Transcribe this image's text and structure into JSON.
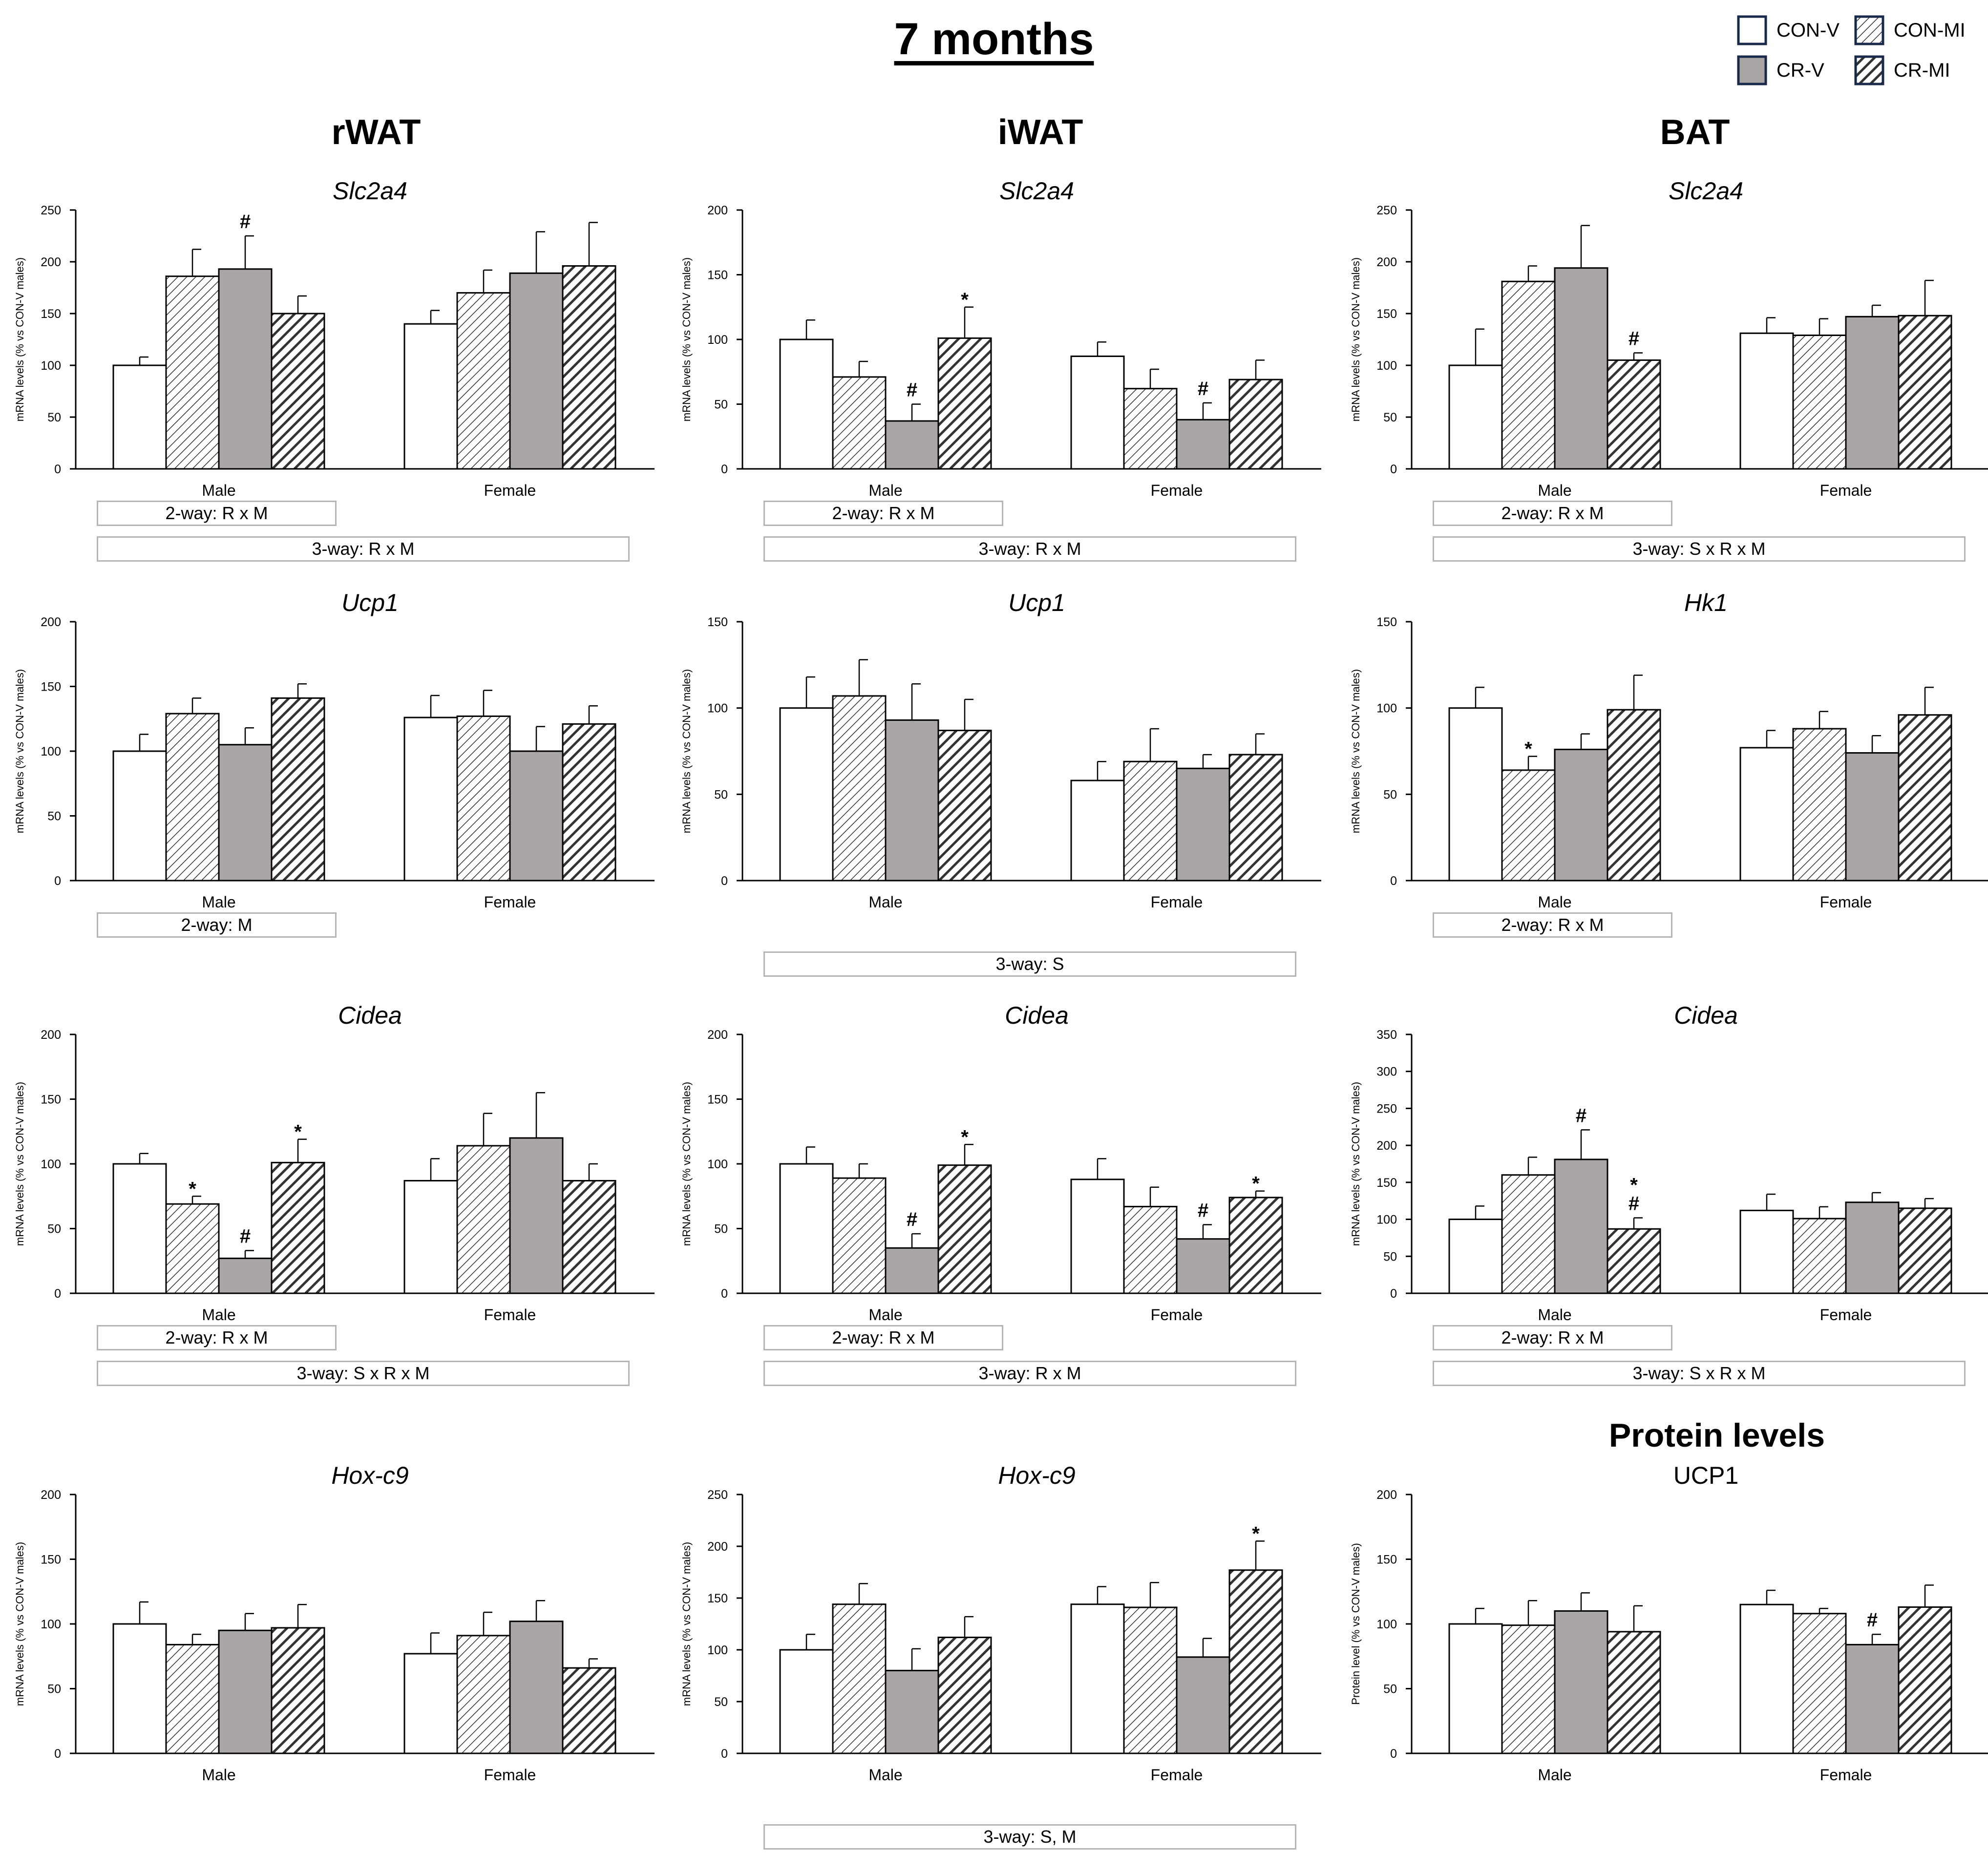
{
  "figure_title": "7 months",
  "columns": [
    "rWAT",
    "iWAT",
    "BAT"
  ],
  "protein_header": "Protein levels",
  "legend": [
    {
      "label": "CON-V",
      "pattern": "white"
    },
    {
      "label": "CON-MI",
      "pattern": "light-hatch"
    },
    {
      "label": "CR-V",
      "pattern": "grey"
    },
    {
      "label": "CR-MI",
      "pattern": "dark-hatch"
    }
  ],
  "colors": {
    "grey": "#aaa6a6",
    "dark_fill": "#333333",
    "stat_border": "#b5b5b5"
  },
  "chart_data": [
    {
      "id": "r1c1",
      "type": "bar",
      "title": "Slc2a4",
      "title_italic": true,
      "ylabel": "mRNA levels (% vs CON-V males)",
      "ylim": [
        0,
        250
      ],
      "yticks": [
        0,
        50,
        100,
        150,
        200,
        250
      ],
      "categories": [
        "Male",
        "Female"
      ],
      "series": [
        {
          "name": "CON-V",
          "values": [
            100,
            140
          ],
          "errors": [
            8,
            13
          ]
        },
        {
          "name": "CON-MI",
          "values": [
            186,
            170
          ],
          "errors": [
            26,
            22
          ]
        },
        {
          "name": "CR-V",
          "values": [
            193,
            189
          ],
          "errors": [
            32,
            40
          ]
        },
        {
          "name": "CR-MI",
          "values": [
            150,
            196
          ],
          "errors": [
            17,
            42
          ]
        }
      ],
      "annotations": [
        {
          "category": 0,
          "series": 2,
          "text": "#"
        }
      ],
      "stat_boxes": [
        {
          "text": "2-way: R x M",
          "span": "male"
        },
        {
          "text": "3-way: R x M",
          "span": "both"
        }
      ]
    },
    {
      "id": "r1c2",
      "type": "bar",
      "title": "Slc2a4",
      "title_italic": true,
      "ylabel": "mRNA levels (% vs CON-V males)",
      "ylim": [
        0,
        200
      ],
      "yticks": [
        0,
        50,
        100,
        150,
        200
      ],
      "categories": [
        "Male",
        "Female"
      ],
      "series": [
        {
          "name": "CON-V",
          "values": [
            100,
            87
          ],
          "errors": [
            15,
            11
          ]
        },
        {
          "name": "CON-MI",
          "values": [
            71,
            62
          ],
          "errors": [
            12,
            15
          ]
        },
        {
          "name": "CR-V",
          "values": [
            37,
            38
          ],
          "errors": [
            13,
            13
          ]
        },
        {
          "name": "CR-MI",
          "values": [
            101,
            69
          ],
          "errors": [
            24,
            15
          ]
        }
      ],
      "annotations": [
        {
          "category": 0,
          "series": 2,
          "text": "#"
        },
        {
          "category": 0,
          "series": 3,
          "text": "*"
        },
        {
          "category": 1,
          "series": 2,
          "text": "#"
        }
      ],
      "stat_boxes": [
        {
          "text": "2-way: R x M",
          "span": "male"
        },
        {
          "text": "3-way:  R x M",
          "span": "both"
        }
      ]
    },
    {
      "id": "r1c3",
      "type": "bar",
      "title": "Slc2a4",
      "title_italic": true,
      "ylabel": "mRNA levels (% vs CON-V males)",
      "ylim": [
        0,
        250
      ],
      "yticks": [
        0,
        50,
        100,
        150,
        200,
        250
      ],
      "categories": [
        "Male",
        "Female"
      ],
      "series": [
        {
          "name": "CON-V",
          "values": [
            100,
            131
          ],
          "errors": [
            35,
            15
          ]
        },
        {
          "name": "CON-MI",
          "values": [
            181,
            129
          ],
          "errors": [
            15,
            16
          ]
        },
        {
          "name": "CR-V",
          "values": [
            194,
            147
          ],
          "errors": [
            41,
            11
          ]
        },
        {
          "name": "CR-MI",
          "values": [
            105,
            148
          ],
          "errors": [
            7,
            34
          ]
        }
      ],
      "annotations": [
        {
          "category": 0,
          "series": 3,
          "text": "#"
        }
      ],
      "stat_boxes": [
        {
          "text": "2-way: R x M",
          "span": "male"
        },
        {
          "text": "3-way:  S x R x M",
          "span": "both"
        }
      ]
    },
    {
      "id": "r2c1",
      "type": "bar",
      "title": "Ucp1",
      "title_italic": true,
      "ylabel": "mRNA levels (% vs CON-V males)",
      "ylim": [
        0,
        200
      ],
      "yticks": [
        0,
        50,
        100,
        150,
        200
      ],
      "categories": [
        "Male",
        "Female"
      ],
      "series": [
        {
          "name": "CON-V",
          "values": [
            100,
            126
          ],
          "errors": [
            13,
            17
          ]
        },
        {
          "name": "CON-MI",
          "values": [
            129,
            127
          ],
          "errors": [
            12,
            20
          ]
        },
        {
          "name": "CR-V",
          "values": [
            105,
            100
          ],
          "errors": [
            13,
            19
          ]
        },
        {
          "name": "CR-MI",
          "values": [
            141,
            121
          ],
          "errors": [
            11,
            14
          ]
        }
      ],
      "annotations": [],
      "stat_boxes": [
        {
          "text": "2-way: M",
          "span": "male"
        }
      ]
    },
    {
      "id": "r2c2",
      "type": "bar",
      "title": "Ucp1",
      "title_italic": true,
      "ylabel": "mRNA levels (% vs CON-V males)",
      "ylim": [
        0,
        150
      ],
      "yticks": [
        0,
        50,
        100,
        150
      ],
      "categories": [
        "Male",
        "Female"
      ],
      "series": [
        {
          "name": "CON-V",
          "values": [
            100,
            58
          ],
          "errors": [
            18,
            11
          ]
        },
        {
          "name": "CON-MI",
          "values": [
            107,
            69
          ],
          "errors": [
            21,
            19
          ]
        },
        {
          "name": "CR-V",
          "values": [
            93,
            65
          ],
          "errors": [
            21,
            8
          ]
        },
        {
          "name": "CR-MI",
          "values": [
            87,
            73
          ],
          "errors": [
            18,
            12
          ]
        }
      ],
      "annotations": [],
      "stat_boxes": [
        {
          "text": "3-way:  S",
          "span": "both-low"
        }
      ]
    },
    {
      "id": "r2c3",
      "type": "bar",
      "title": "Hk1",
      "title_italic": true,
      "ylabel": "mRNA levels (% vs CON-V males)",
      "ylim": [
        0,
        150
      ],
      "yticks": [
        0,
        50,
        100,
        150
      ],
      "categories": [
        "Male",
        "Female"
      ],
      "series": [
        {
          "name": "CON-V",
          "values": [
            100,
            77
          ],
          "errors": [
            12,
            10
          ]
        },
        {
          "name": "CON-MI",
          "values": [
            64,
            88
          ],
          "errors": [
            8,
            10
          ]
        },
        {
          "name": "CR-V",
          "values": [
            76,
            74
          ],
          "errors": [
            9,
            10
          ]
        },
        {
          "name": "CR-MI",
          "values": [
            99,
            96
          ],
          "errors": [
            20,
            16
          ]
        }
      ],
      "annotations": [
        {
          "category": 0,
          "series": 1,
          "text": "*"
        }
      ],
      "stat_boxes": [
        {
          "text": "2-way: R x M",
          "span": "male"
        }
      ]
    },
    {
      "id": "r3c1",
      "type": "bar",
      "title": "Cidea",
      "title_italic": true,
      "ylabel": "mRNA levels (% vs CON-V males)",
      "ylim": [
        0,
        200
      ],
      "yticks": [
        0,
        50,
        100,
        150,
        200
      ],
      "categories": [
        "Male",
        "Female"
      ],
      "series": [
        {
          "name": "CON-V",
          "values": [
            100,
            87
          ],
          "errors": [
            8,
            17
          ]
        },
        {
          "name": "CON-MI",
          "values": [
            69,
            114
          ],
          "errors": [
            6,
            25
          ]
        },
        {
          "name": "CR-V",
          "values": [
            27,
            120
          ],
          "errors": [
            6,
            35
          ]
        },
        {
          "name": "CR-MI",
          "values": [
            101,
            87
          ],
          "errors": [
            18,
            13
          ]
        }
      ],
      "annotations": [
        {
          "category": 0,
          "series": 1,
          "text": "*"
        },
        {
          "category": 0,
          "series": 2,
          "text": "#"
        },
        {
          "category": 0,
          "series": 3,
          "text": "*"
        }
      ],
      "stat_boxes": [
        {
          "text": "2-way: R x M",
          "span": "male"
        },
        {
          "text": "3-way: S x R x M",
          "span": "both"
        }
      ]
    },
    {
      "id": "r3c2",
      "type": "bar",
      "title": "Cidea",
      "title_italic": true,
      "ylabel": "mRNA levels (% vs CON-V males)",
      "ylim": [
        0,
        200
      ],
      "yticks": [
        0,
        50,
        100,
        150,
        200
      ],
      "categories": [
        "Male",
        "Female"
      ],
      "series": [
        {
          "name": "CON-V",
          "values": [
            100,
            88
          ],
          "errors": [
            13,
            16
          ]
        },
        {
          "name": "CON-MI",
          "values": [
            89,
            67
          ],
          "errors": [
            11,
            15
          ]
        },
        {
          "name": "CR-V",
          "values": [
            35,
            42
          ],
          "errors": [
            11,
            11
          ]
        },
        {
          "name": "CR-MI",
          "values": [
            99,
            74
          ],
          "errors": [
            16,
            5
          ]
        }
      ],
      "annotations": [
        {
          "category": 0,
          "series": 2,
          "text": "#"
        },
        {
          "category": 0,
          "series": 3,
          "text": "*"
        },
        {
          "category": 1,
          "series": 2,
          "text": "#"
        },
        {
          "category": 1,
          "series": 3,
          "text": "*"
        }
      ],
      "stat_boxes": [
        {
          "text": "2-way: R x M",
          "span": "male"
        },
        {
          "text": "3-way:  R x M",
          "span": "both"
        }
      ]
    },
    {
      "id": "r3c3",
      "type": "bar",
      "title": "Cidea",
      "title_italic": true,
      "ylabel": "mRNA levels (% vs CON-V males)",
      "ylim": [
        0,
        350
      ],
      "yticks": [
        0,
        50,
        100,
        150,
        200,
        250,
        300,
        350
      ],
      "categories": [
        "Male",
        "Female"
      ],
      "series": [
        {
          "name": "CON-V",
          "values": [
            100,
            112
          ],
          "errors": [
            18,
            22
          ]
        },
        {
          "name": "CON-MI",
          "values": [
            160,
            101
          ],
          "errors": [
            24,
            16
          ]
        },
        {
          "name": "CR-V",
          "values": [
            181,
            123
          ],
          "errors": [
            40,
            13
          ]
        },
        {
          "name": "CR-MI",
          "values": [
            87,
            115
          ],
          "errors": [
            15,
            13
          ]
        }
      ],
      "annotations": [
        {
          "category": 0,
          "series": 2,
          "text": "#"
        },
        {
          "category": 0,
          "series": 3,
          "text": "*"
        },
        {
          "category": 0,
          "series": 3,
          "text": "#"
        }
      ],
      "stat_boxes": [
        {
          "text": "2-way: R x M",
          "span": "male"
        },
        {
          "text": "3-way:  S x R x M",
          "span": "both"
        }
      ]
    },
    {
      "id": "r4c1",
      "type": "bar",
      "title": "Hox-c9",
      "title_italic": true,
      "ylabel": "mRNA levels (% vs CON-V males)",
      "ylim": [
        0,
        200
      ],
      "yticks": [
        0,
        50,
        100,
        150,
        200
      ],
      "categories": [
        "Male",
        "Female"
      ],
      "series": [
        {
          "name": "CON-V",
          "values": [
            100,
            77
          ],
          "errors": [
            17,
            16
          ]
        },
        {
          "name": "CON-MI",
          "values": [
            84,
            91
          ],
          "errors": [
            8,
            18
          ]
        },
        {
          "name": "CR-V",
          "values": [
            95,
            102
          ],
          "errors": [
            13,
            16
          ]
        },
        {
          "name": "CR-MI",
          "values": [
            97,
            66
          ],
          "errors": [
            18,
            7
          ]
        }
      ],
      "annotations": [],
      "stat_boxes": []
    },
    {
      "id": "r4c2",
      "type": "bar",
      "title": "Hox-c9",
      "title_italic": true,
      "ylabel": "mRNA levels (% vs CON-V males)",
      "ylim": [
        0,
        250
      ],
      "yticks": [
        0,
        50,
        100,
        150,
        200,
        250
      ],
      "categories": [
        "Male",
        "Female"
      ],
      "series": [
        {
          "name": "CON-V",
          "values": [
            100,
            144
          ],
          "errors": [
            15,
            17
          ]
        },
        {
          "name": "CON-MI",
          "values": [
            144,
            141
          ],
          "errors": [
            20,
            24
          ]
        },
        {
          "name": "CR-V",
          "values": [
            80,
            93
          ],
          "errors": [
            21,
            18
          ]
        },
        {
          "name": "CR-MI",
          "values": [
            112,
            177
          ],
          "errors": [
            20,
            28
          ]
        }
      ],
      "annotations": [
        {
          "category": 1,
          "series": 3,
          "text": "*"
        }
      ],
      "stat_boxes": [
        {
          "text": "3-way:  S, M",
          "span": "both-low"
        }
      ]
    },
    {
      "id": "r4c3",
      "type": "bar",
      "title": "UCP1",
      "title_italic": false,
      "ylabel": "Protein level (% vs CON-V males)",
      "ylim": [
        0,
        200
      ],
      "yticks": [
        0,
        50,
        100,
        150,
        200
      ],
      "categories": [
        "Male",
        "Female"
      ],
      "series": [
        {
          "name": "CON-V",
          "values": [
            100,
            115
          ],
          "errors": [
            12,
            11
          ]
        },
        {
          "name": "CON-MI",
          "values": [
            99,
            108
          ],
          "errors": [
            19,
            4
          ]
        },
        {
          "name": "CR-V",
          "values": [
            110,
            84
          ],
          "errors": [
            14,
            8
          ]
        },
        {
          "name": "CR-MI",
          "values": [
            94,
            113
          ],
          "errors": [
            20,
            17
          ]
        }
      ],
      "annotations": [
        {
          "category": 1,
          "series": 2,
          "text": "#"
        }
      ],
      "stat_boxes": []
    }
  ]
}
